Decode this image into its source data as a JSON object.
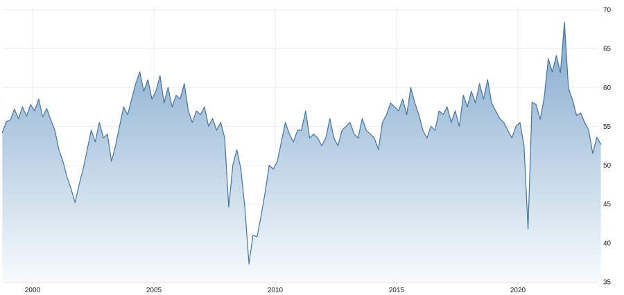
{
  "chart": {
    "colors": {
      "line": "#45729f",
      "fill_top": "#7aa3c9",
      "fill_bottom": "#f7fbfd",
      "grid": "#ebebeb",
      "axis": "#cfcfcf",
      "tick_text": "#222222",
      "background": "#ffffff"
    }
  },
  "chart_data": {
    "type": "area",
    "title": "",
    "xlabel": "",
    "ylabel": "",
    "legend": false,
    "grid": true,
    "ylim": [
      35,
      70
    ],
    "xlim": [
      1998.65,
      2023.5
    ],
    "y_ticks": [
      35,
      40,
      45,
      50,
      55,
      60,
      65,
      70
    ],
    "x_ticks": [
      2000,
      2005,
      2010,
      2015,
      2020
    ],
    "x_start": 1998.75,
    "x_step_years": 0.166667,
    "values": [
      54.2,
      55.6,
      55.8,
      57.2,
      56.0,
      57.5,
      56.3,
      57.8,
      57.0,
      58.5,
      56.2,
      57.3,
      55.8,
      54.5,
      52.0,
      50.5,
      48.5,
      47.0,
      45.2,
      47.5,
      49.5,
      52.0,
      54.5,
      53.0,
      55.5,
      53.5,
      54.0,
      50.5,
      52.5,
      55.0,
      57.5,
      56.5,
      58.5,
      60.5,
      62.0,
      59.5,
      61.0,
      58.5,
      59.5,
      61.5,
      58.0,
      60.0,
      57.5,
      59.0,
      58.5,
      60.5,
      57.0,
      55.5,
      57.0,
      56.5,
      57.5,
      55.0,
      56.0,
      54.5,
      55.5,
      53.5,
      44.6,
      50.0,
      52.0,
      49.5,
      44.4,
      37.3,
      41.0,
      40.8,
      43.5,
      46.5,
      50.0,
      49.5,
      50.5,
      53.0,
      55.5,
      54.0,
      53.0,
      54.5,
      54.5,
      57.0,
      53.5,
      54.0,
      53.5,
      52.5,
      53.5,
      56.0,
      53.5,
      52.5,
      54.5,
      55.0,
      55.5,
      54.0,
      53.5,
      56.0,
      54.5,
      54.0,
      53.5,
      52.0,
      55.5,
      56.5,
      58.0,
      57.5,
      57.0,
      58.5,
      56.5,
      60.0,
      58.0,
      56.5,
      54.5,
      53.5,
      55.0,
      54.5,
      57.0,
      56.5,
      57.5,
      55.5,
      57.0,
      55.0,
      59.0,
      57.5,
      59.5,
      58.0,
      60.5,
      58.5,
      61.0,
      58.0,
      57.0,
      56.0,
      55.5,
      54.5,
      53.5,
      55.0,
      55.5,
      52.5,
      41.8,
      58.1,
      57.8,
      55.9,
      58.7,
      63.7,
      62.0,
      64.1,
      61.9,
      68.4,
      59.9,
      58.4,
      56.4,
      56.7,
      55.5,
      54.5,
      51.5,
      53.6,
      52.7
    ]
  }
}
